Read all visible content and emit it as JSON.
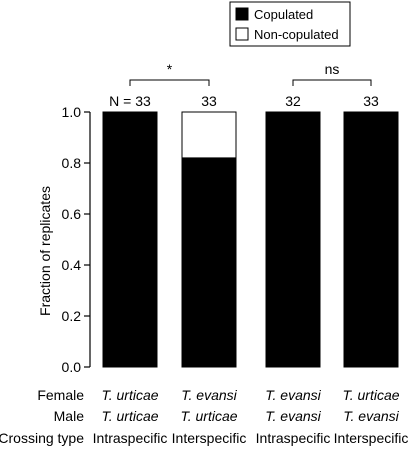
{
  "chart_data": {
    "type": "bar",
    "stacked": true,
    "ylabel": "Fraction of replicates",
    "ylim": [
      0,
      1.0
    ],
    "yticks": [
      "0.0",
      "0.2",
      "0.4",
      "0.6",
      "0.8",
      "1.0"
    ],
    "categories": [
      "1",
      "2",
      "3",
      "4"
    ],
    "n_labels": [
      "N = 33",
      "33",
      "32",
      "33"
    ],
    "series": [
      {
        "name": "Copulated",
        "values": [
          1.0,
          0.82,
          1.0,
          1.0
        ],
        "color": "#000000"
      },
      {
        "name": "Non-copulated",
        "values": [
          0.0,
          0.18,
          0.0,
          0.0
        ],
        "color": "#ffffff"
      }
    ],
    "legend": {
      "placement": "top-right"
    },
    "grid": false,
    "comparisons": [
      {
        "bars": [
          0,
          1
        ],
        "label": "*"
      },
      {
        "bars": [
          2,
          3
        ],
        "label": "ns"
      }
    ],
    "row_labels": {
      "female": "Female",
      "male": "Male",
      "crossing": "Crossing type"
    },
    "rows": {
      "female": [
        "T. urticae",
        "T. evansi",
        "T. evansi",
        "T. urticae"
      ],
      "male": [
        "T. urticae",
        "T. urticae",
        "T. evansi",
        "T. evansi"
      ],
      "crossing": [
        "Intraspecific",
        "Interspecific",
        "Intraspecific",
        "Interspecific"
      ]
    }
  }
}
